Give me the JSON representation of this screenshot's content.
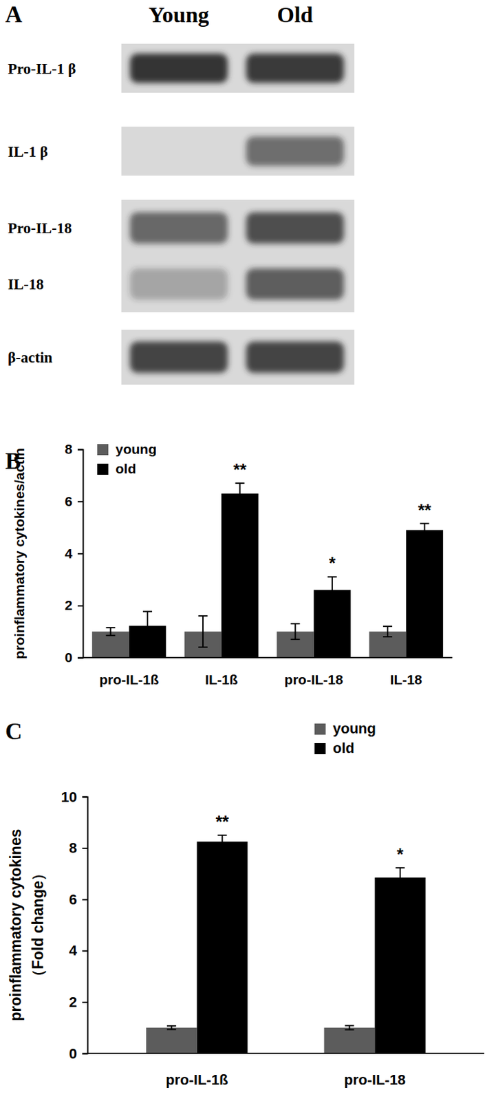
{
  "blot": {
    "title": "A",
    "lanes": [
      "Young",
      "Old"
    ],
    "strips": [
      {
        "rows": [
          {
            "name": "Pro-IL-1 β",
            "density": [
              0.95,
              0.9
            ]
          }
        ]
      },
      {
        "rows": [
          {
            "name": "IL-1 β",
            "density": [
              0,
              0.6
            ]
          }
        ]
      },
      {
        "rows": [
          {
            "name": "Pro-IL-18",
            "density": [
              0.65,
              0.8
            ]
          },
          {
            "name": "IL-18",
            "density": [
              0.3,
              0.7
            ]
          }
        ]
      },
      {
        "rows": [
          {
            "name": "β-actin",
            "density": [
              0.85,
              0.85
            ]
          }
        ]
      }
    ]
  },
  "chart_data": [
    {
      "type": "bar",
      "title": "B",
      "y_label": "proinflammatory cytokines/actin",
      "categories": [
        "pro-IL-1ß",
        "IL-1ß",
        "pro-IL-18",
        "IL-18"
      ],
      "series": [
        {
          "name": "young",
          "color": "#5c5c5c",
          "values": [
            1,
            1,
            1,
            1
          ],
          "errors": [
            0.15,
            0.6,
            0.3,
            0.2
          ]
        },
        {
          "name": "old",
          "color": "#000000",
          "values": [
            1.22,
            6.3,
            2.6,
            4.9
          ],
          "errors": [
            0.55,
            0.4,
            0.5,
            0.25
          ]
        }
      ],
      "annotations": [
        {
          "category": "IL-1ß",
          "text": "**"
        },
        {
          "category": "pro-IL-18",
          "text": "*"
        },
        {
          "category": "IL-18",
          "text": "**"
        }
      ],
      "ylim": [
        0,
        8
      ],
      "yticks": [
        0,
        2,
        4,
        6,
        8
      ],
      "grid": false,
      "legend": "upper left"
    },
    {
      "type": "bar",
      "title": "C",
      "y_label": "proinflammatory cytokines\n（Fold change）",
      "categories": [
        "pro-IL-1ß",
        "pro-IL-18"
      ],
      "series": [
        {
          "name": "young",
          "color": "#5c5c5c",
          "values": [
            1,
            1
          ],
          "errors": [
            0.07,
            0.08
          ]
        },
        {
          "name": "old",
          "color": "#000000",
          "values": [
            8.25,
            6.85
          ],
          "errors": [
            0.25,
            0.38
          ]
        }
      ],
      "annotations": [
        {
          "category": "pro-IL-1ß",
          "text": "**"
        },
        {
          "category": "pro-IL-18",
          "text": "*"
        }
      ],
      "ylim": [
        0,
        10
      ],
      "yticks": [
        0,
        2,
        4,
        6,
        8,
        10
      ],
      "grid": false,
      "legend": "upper right"
    }
  ]
}
